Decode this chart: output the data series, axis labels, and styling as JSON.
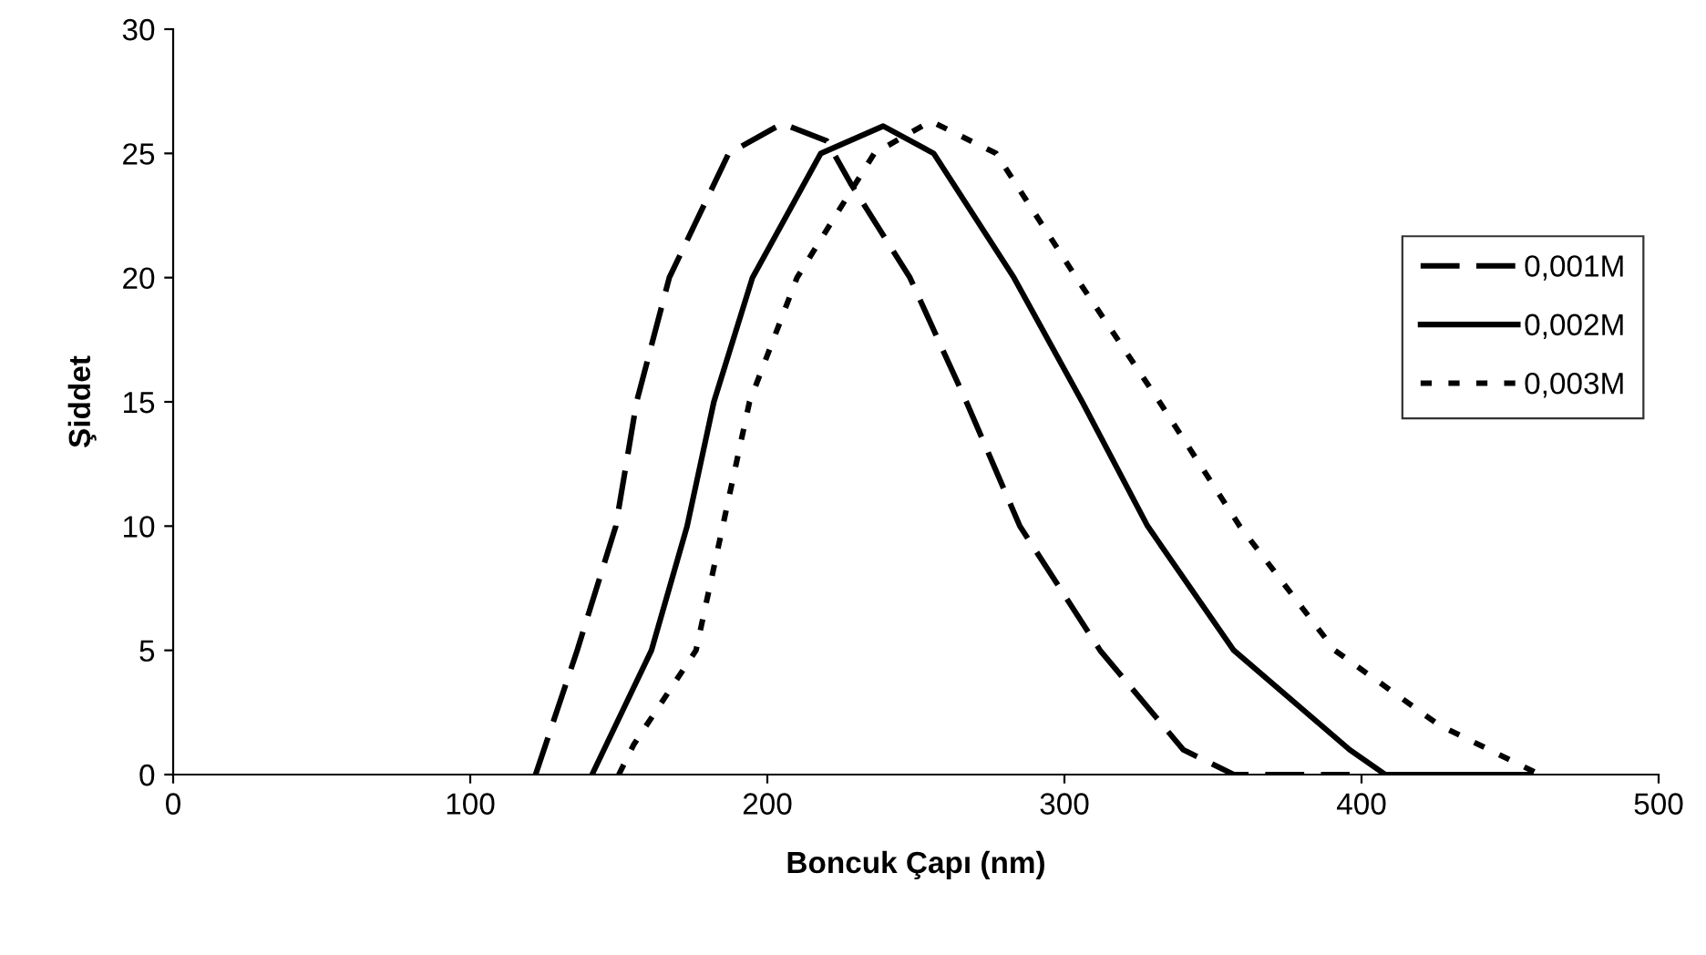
{
  "chart_data": {
    "type": "line",
    "xlabel": "Boncuk Çapı (nm)",
    "ylabel": "Şiddet",
    "xlim": [
      0,
      500
    ],
    "ylim": [
      0,
      30
    ],
    "xticks": [
      0,
      100,
      200,
      300,
      400,
      500
    ],
    "yticks": [
      0,
      5,
      10,
      15,
      20,
      25,
      30
    ],
    "grid": false,
    "legend": "right",
    "marker": "none",
    "series": [
      {
        "name": "0,001M",
        "color": "#000000",
        "line_style": "dashed",
        "x": [
          122,
          136,
          149,
          156,
          167,
          187,
          205,
          220,
          228,
          248,
          267,
          285,
          312,
          340,
          357,
          396
        ],
        "values": [
          0,
          5,
          10,
          15,
          20,
          25,
          26.2,
          25.5,
          23.8,
          20,
          15,
          10,
          5,
          1,
          0,
          0
        ]
      },
      {
        "name": "0,002M",
        "color": "#000000",
        "line_style": "solid",
        "x": [
          141,
          161,
          173,
          182,
          195,
          218,
          239,
          256,
          283,
          306,
          328,
          357,
          396,
          408,
          457
        ],
        "values": [
          0,
          5,
          10,
          15,
          20,
          25,
          26.1,
          25,
          20,
          15,
          10,
          5,
          1,
          0,
          0
        ]
      },
      {
        "name": "0,003M",
        "color": "#000000",
        "line_style": "dotted",
        "x": [
          150,
          155,
          176,
          185,
          194,
          210,
          236,
          255,
          277,
          304,
          332,
          359,
          391,
          426,
          460
        ],
        "values": [
          0,
          1.2,
          5,
          10,
          15,
          20,
          25,
          26.3,
          25,
          20,
          15,
          10,
          5,
          2,
          0
        ]
      }
    ]
  }
}
